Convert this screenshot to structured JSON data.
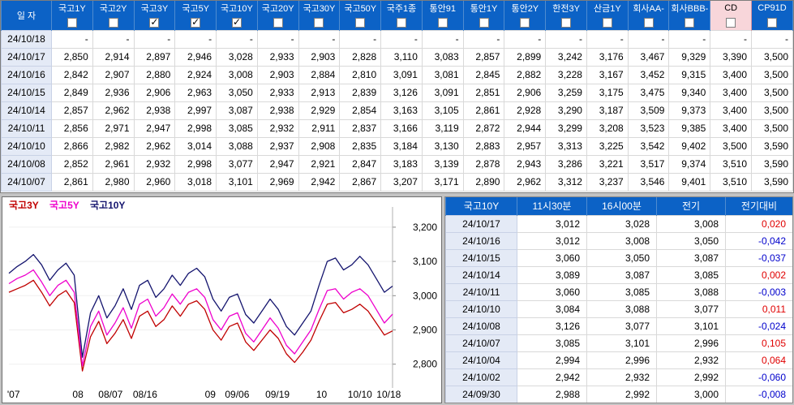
{
  "colors": {
    "header_blue": "#0c62c6",
    "cd_highlight_pink": "#f8d6da",
    "date_cell_bg": "#e4eaf6",
    "change_up_red": "#e00000",
    "change_down_blue": "#0000cc"
  },
  "main_table": {
    "date_header": "일 자",
    "columns": [
      {
        "label": "국고1Y",
        "checked": false,
        "highlight": false
      },
      {
        "label": "국고2Y",
        "checked": false,
        "highlight": false
      },
      {
        "label": "국고3Y",
        "checked": true,
        "highlight": false
      },
      {
        "label": "국고5Y",
        "checked": true,
        "highlight": false
      },
      {
        "label": "국고10Y",
        "checked": true,
        "highlight": false
      },
      {
        "label": "국고20Y",
        "checked": false,
        "highlight": false
      },
      {
        "label": "국고30Y",
        "checked": false,
        "highlight": false
      },
      {
        "label": "국고50Y",
        "checked": false,
        "highlight": false
      },
      {
        "label": "국주1종",
        "checked": false,
        "highlight": false
      },
      {
        "label": "통안91",
        "checked": false,
        "highlight": false
      },
      {
        "label": "통안1Y",
        "checked": false,
        "highlight": false
      },
      {
        "label": "통안2Y",
        "checked": false,
        "highlight": false
      },
      {
        "label": "한전3Y",
        "checked": false,
        "highlight": false
      },
      {
        "label": "산금1Y",
        "checked": false,
        "highlight": false
      },
      {
        "label": "회사AA-",
        "checked": false,
        "highlight": false
      },
      {
        "label": "회사BBB-",
        "checked": false,
        "highlight": false
      },
      {
        "label": "CD",
        "checked": false,
        "highlight": true
      },
      {
        "label": "CP91D",
        "checked": false,
        "highlight": false
      }
    ],
    "rows": [
      {
        "date": "24/10/18",
        "values": [
          "-",
          "-",
          "-",
          "-",
          "-",
          "-",
          "-",
          "-",
          "-",
          "-",
          "-",
          "-",
          "-",
          "-",
          "-",
          "-",
          "-",
          "-"
        ]
      },
      {
        "date": "24/10/17",
        "values": [
          "2,850",
          "2,914",
          "2,897",
          "2,946",
          "3,028",
          "2,933",
          "2,903",
          "2,828",
          "3,110",
          "3,083",
          "2,857",
          "2,899",
          "3,242",
          "3,176",
          "3,467",
          "9,329",
          "3,390",
          "3,500"
        ]
      },
      {
        "date": "24/10/16",
        "values": [
          "2,842",
          "2,907",
          "2,880",
          "2,924",
          "3,008",
          "2,903",
          "2,884",
          "2,810",
          "3,091",
          "3,081",
          "2,845",
          "2,882",
          "3,228",
          "3,167",
          "3,452",
          "9,315",
          "3,400",
          "3,500"
        ]
      },
      {
        "date": "24/10/15",
        "values": [
          "2,849",
          "2,936",
          "2,906",
          "2,963",
          "3,050",
          "2,933",
          "2,913",
          "2,839",
          "3,126",
          "3,091",
          "2,851",
          "2,906",
          "3,259",
          "3,175",
          "3,475",
          "9,340",
          "3,400",
          "3,500"
        ]
      },
      {
        "date": "24/10/14",
        "values": [
          "2,857",
          "2,962",
          "2,938",
          "2,997",
          "3,087",
          "2,938",
          "2,929",
          "2,854",
          "3,163",
          "3,105",
          "2,861",
          "2,928",
          "3,290",
          "3,187",
          "3,509",
          "9,373",
          "3,400",
          "3,500"
        ]
      },
      {
        "date": "24/10/11",
        "values": [
          "2,856",
          "2,971",
          "2,947",
          "2,998",
          "3,085",
          "2,932",
          "2,911",
          "2,837",
          "3,166",
          "3,119",
          "2,872",
          "2,944",
          "3,299",
          "3,208",
          "3,523",
          "9,385",
          "3,400",
          "3,500"
        ]
      },
      {
        "date": "24/10/10",
        "values": [
          "2,866",
          "2,982",
          "2,962",
          "3,014",
          "3,088",
          "2,937",
          "2,908",
          "2,835",
          "3,184",
          "3,130",
          "2,883",
          "2,957",
          "3,313",
          "3,225",
          "3,542",
          "9,402",
          "3,500",
          "3,590"
        ]
      },
      {
        "date": "24/10/08",
        "values": [
          "2,852",
          "2,961",
          "2,932",
          "2,998",
          "3,077",
          "2,947",
          "2,921",
          "2,847",
          "3,183",
          "3,139",
          "2,878",
          "2,943",
          "3,286",
          "3,221",
          "3,517",
          "9,374",
          "3,510",
          "3,590"
        ]
      },
      {
        "date": "24/10/07",
        "values": [
          "2,861",
          "2,980",
          "2,960",
          "3,018",
          "3,101",
          "2,969",
          "2,942",
          "2,867",
          "3,207",
          "3,171",
          "2,890",
          "2,962",
          "3,312",
          "3,237",
          "3,546",
          "9,401",
          "3,510",
          "3,590"
        ]
      }
    ]
  },
  "detail_table": {
    "columns": [
      "국고10Y",
      "11시30분",
      "16시00분",
      "전기",
      "전기대비"
    ],
    "rows": [
      {
        "date": "24/10/17",
        "t1130": "3,012",
        "t1600": "3,028",
        "prev": "3,008",
        "chg": "0,020",
        "dir": "up"
      },
      {
        "date": "24/10/16",
        "t1130": "3,012",
        "t1600": "3,008",
        "prev": "3,050",
        "chg": "-0,042",
        "dir": "down"
      },
      {
        "date": "24/10/15",
        "t1130": "3,060",
        "t1600": "3,050",
        "prev": "3,087",
        "chg": "-0,037",
        "dir": "down"
      },
      {
        "date": "24/10/14",
        "t1130": "3,089",
        "t1600": "3,087",
        "prev": "3,085",
        "chg": "0,002",
        "dir": "up"
      },
      {
        "date": "24/10/11",
        "t1130": "3,060",
        "t1600": "3,085",
        "prev": "3,088",
        "chg": "-0,003",
        "dir": "down"
      },
      {
        "date": "24/10/10",
        "t1130": "3,084",
        "t1600": "3,088",
        "prev": "3,077",
        "chg": "0,011",
        "dir": "up"
      },
      {
        "date": "24/10/08",
        "t1130": "3,126",
        "t1600": "3,077",
        "prev": "3,101",
        "chg": "-0,024",
        "dir": "down"
      },
      {
        "date": "24/10/07",
        "t1130": "3,085",
        "t1600": "3,101",
        "prev": "2,996",
        "chg": "0,105",
        "dir": "up"
      },
      {
        "date": "24/10/04",
        "t1130": "2,994",
        "t1600": "2,996",
        "prev": "2,932",
        "chg": "0,064",
        "dir": "up"
      },
      {
        "date": "24/10/02",
        "t1130": "2,942",
        "t1600": "2,932",
        "prev": "2,992",
        "chg": "-0,060",
        "dir": "down"
      },
      {
        "date": "24/09/30",
        "t1130": "2,988",
        "t1600": "2,992",
        "prev": "3,000",
        "chg": "-0,008",
        "dir": "down"
      }
    ]
  },
  "chart_data": {
    "type": "line",
    "title": "",
    "xlabel": "",
    "ylabel": "",
    "grid": false,
    "legend_position": "top-left",
    "y_axis_side": "right",
    "ylim": [
      2740,
      3240
    ],
    "y_ticks": [
      2800,
      2900,
      3000,
      3100,
      3200
    ],
    "y_tick_labels": [
      "2,800",
      "2,900",
      "3,000",
      "3,100",
      "3,200"
    ],
    "x_tick_labels": [
      "'07",
      "08",
      "08/07",
      "08/16",
      "09",
      "09/06",
      "09/19",
      "10",
      "10/10",
      "10/18"
    ],
    "x_tick_pos": [
      0.012,
      0.18,
      0.265,
      0.355,
      0.525,
      0.595,
      0.7,
      0.815,
      0.915,
      0.99
    ],
    "series": [
      {
        "name": "국고3Y",
        "color": "#c00000",
        "values": [
          3010,
          3020,
          3030,
          3045,
          3010,
          2970,
          3000,
          3015,
          2980,
          2780,
          2880,
          2925,
          2860,
          2890,
          2930,
          2875,
          2940,
          2955,
          2910,
          2930,
          2970,
          2940,
          2975,
          2985,
          2960,
          2900,
          2870,
          2910,
          2920,
          2865,
          2840,
          2870,
          2900,
          2875,
          2830,
          2805,
          2835,
          2870,
          2925,
          2975,
          2980,
          2950,
          2960,
          2975,
          2955,
          2920,
          2885,
          2897
        ]
      },
      {
        "name": "국고5Y",
        "color": "#ee00cc",
        "values": [
          3035,
          3050,
          3060,
          3075,
          3040,
          3000,
          3030,
          3045,
          3010,
          2795,
          2910,
          2955,
          2885,
          2920,
          2965,
          2905,
          2975,
          2990,
          2940,
          2965,
          3005,
          2975,
          3010,
          3020,
          2995,
          2930,
          2900,
          2940,
          2950,
          2890,
          2865,
          2900,
          2935,
          2905,
          2855,
          2830,
          2865,
          2900,
          2960,
          3015,
          3020,
          2990,
          3010,
          3020,
          3000,
          2960,
          2920,
          2946
        ]
      },
      {
        "name": "국고10Y",
        "color": "#14146e",
        "values": [
          3065,
          3085,
          3100,
          3120,
          3090,
          3045,
          3075,
          3095,
          3060,
          2820,
          2950,
          3000,
          2935,
          2970,
          3020,
          2960,
          3030,
          3045,
          2995,
          3020,
          3060,
          3030,
          3065,
          3080,
          3055,
          2990,
          2955,
          2995,
          3005,
          2945,
          2920,
          2955,
          2990,
          2960,
          2910,
          2885,
          2920,
          2955,
          3030,
          3100,
          3110,
          3075,
          3090,
          3115,
          3090,
          3050,
          3010,
          3028
        ]
      }
    ]
  }
}
